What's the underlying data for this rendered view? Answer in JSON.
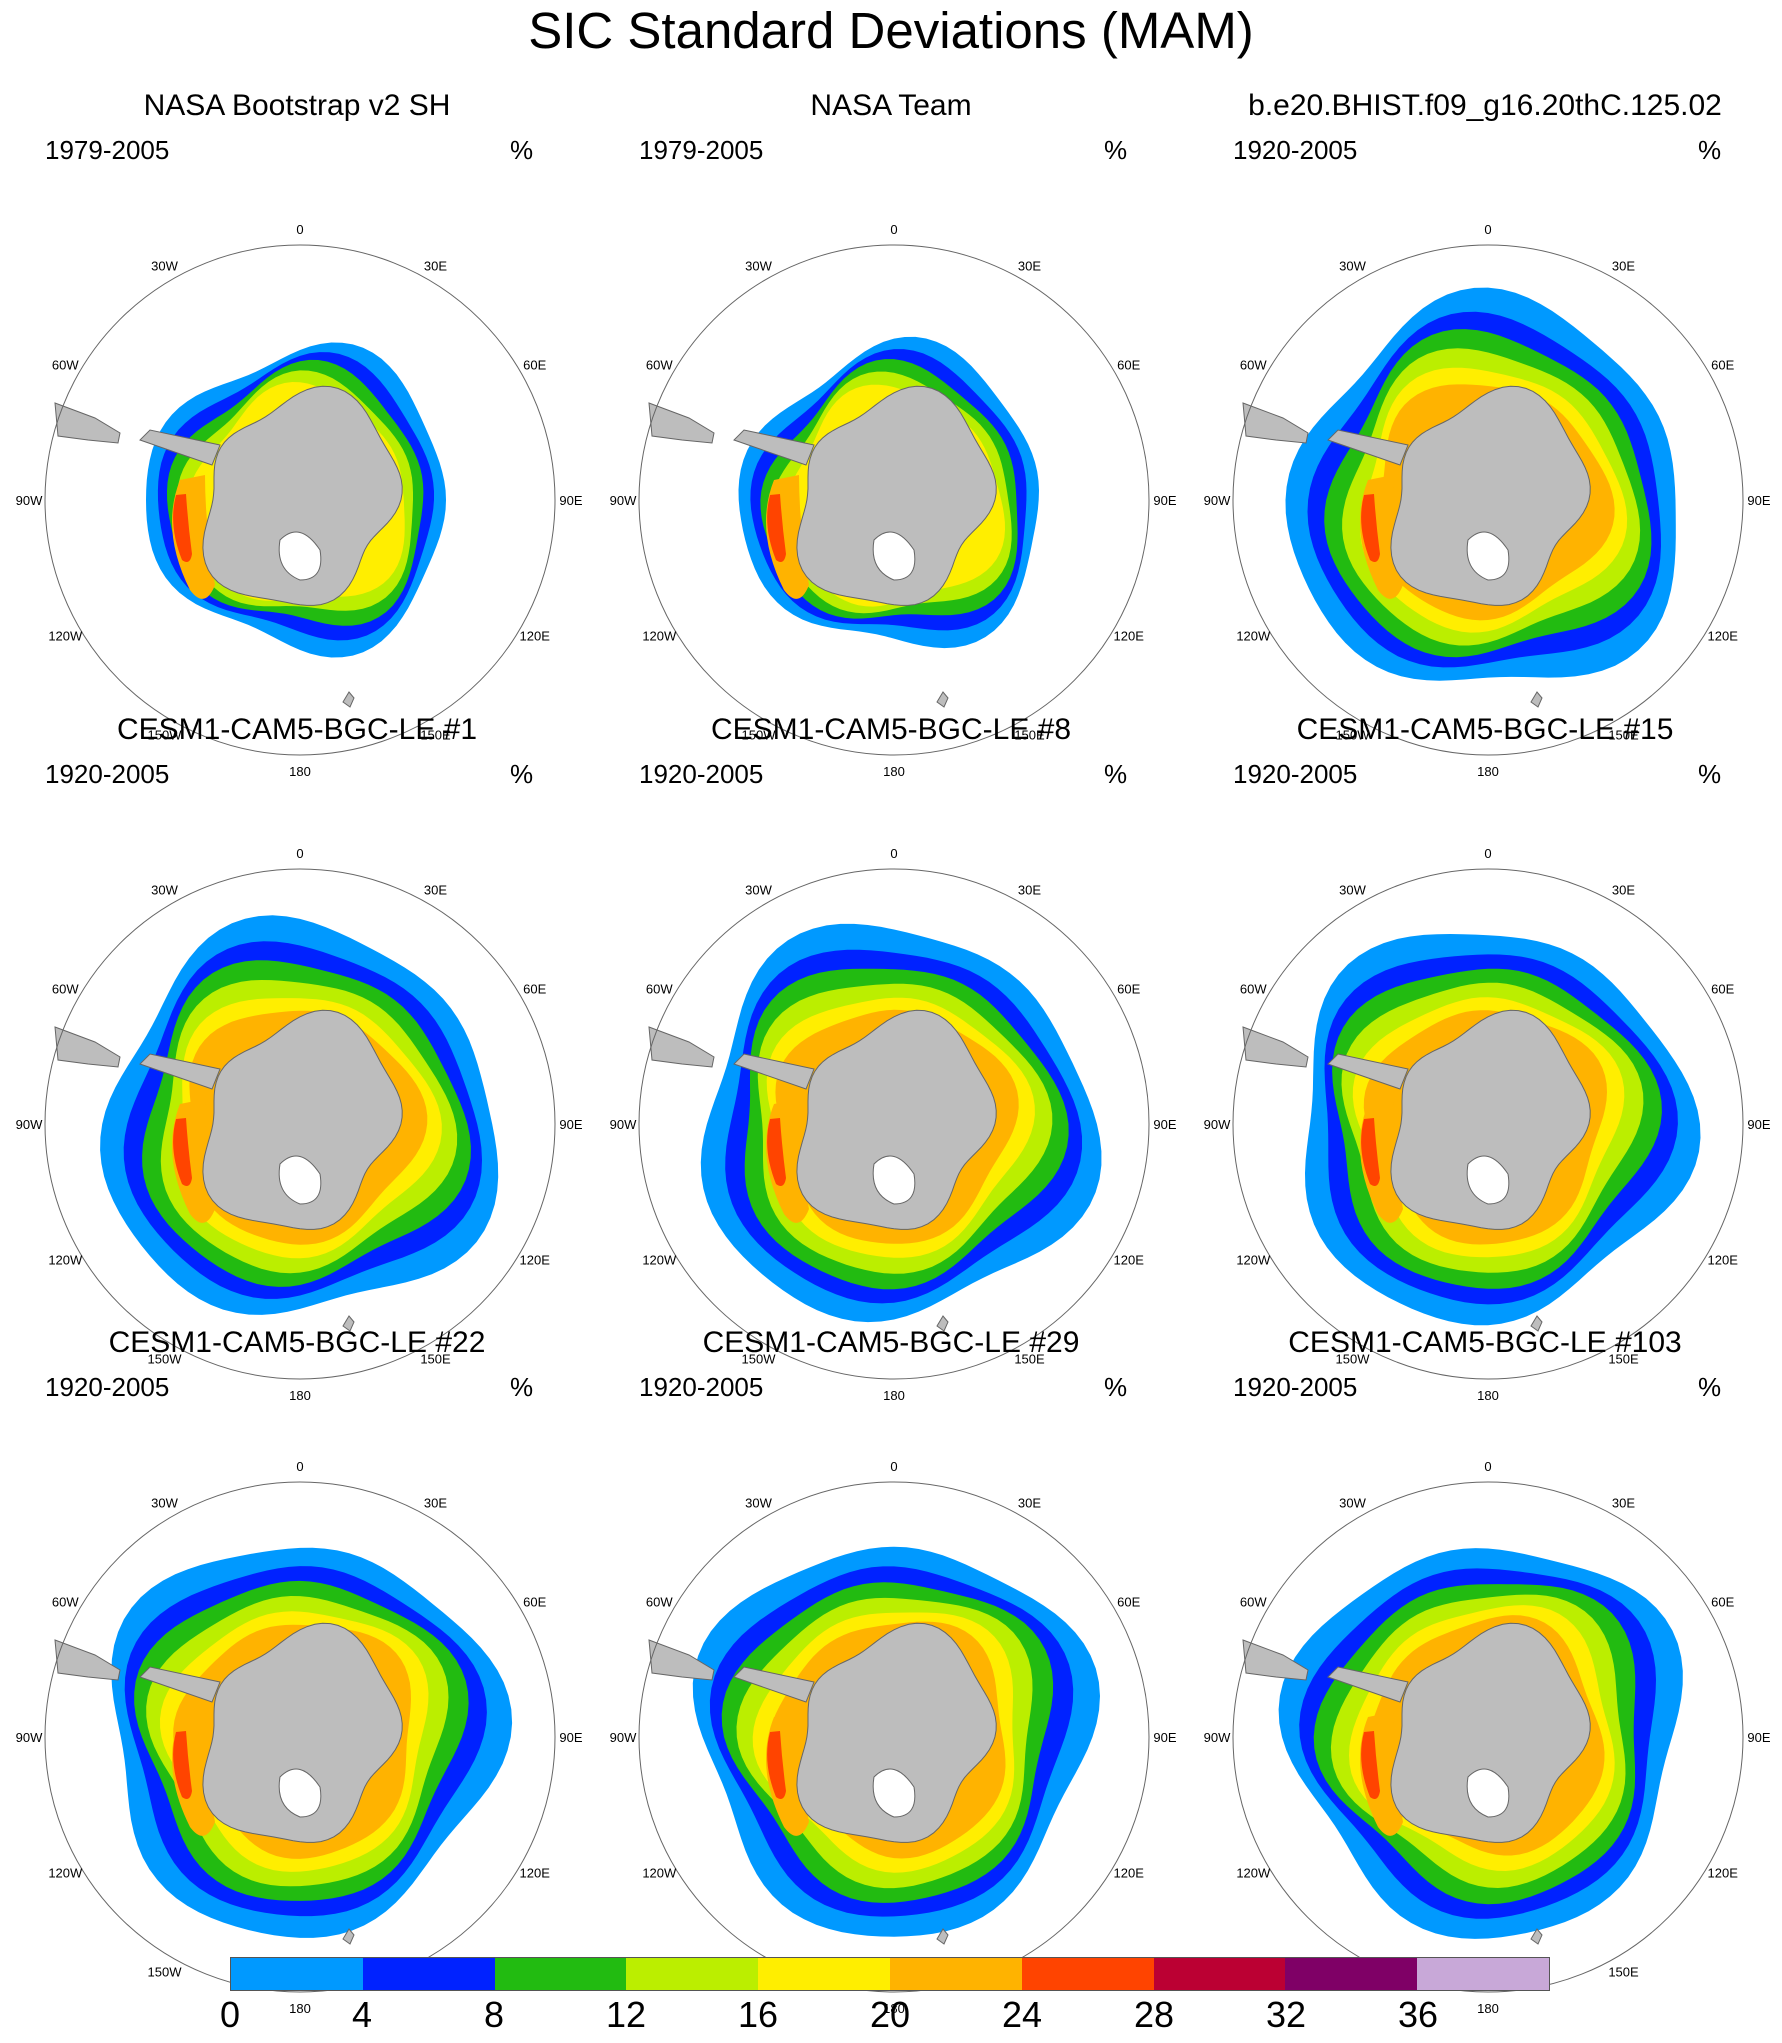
{
  "title": "SIC Standard Deviations (MAM)",
  "unit": "%",
  "longitude_labels": [
    "0",
    "30E",
    "60E",
    "90E",
    "120E",
    "150E",
    "180",
    "150W",
    "120W",
    "90W",
    "60W",
    "30W"
  ],
  "colorbar": {
    "colors": [
      "#0099ff",
      "#0022ff",
      "#22bb11",
      "#bbee00",
      "#ffee00",
      "#ffb300",
      "#ff4400",
      "#bb0033",
      "#7f0066",
      "#c8a8d8"
    ],
    "labels": [
      "0",
      "4",
      "8",
      "12",
      "16",
      "20",
      "24",
      "28",
      "32",
      "36"
    ]
  },
  "panels": [
    {
      "title": "NASA Bootstrap v2 SH",
      "years": "1979-2005"
    },
    {
      "title": "NASA Team",
      "years": "1979-2005"
    },
    {
      "title": "b.e20.BHIST.f09_g16.20thC.125.02",
      "years": "1920-2005"
    },
    {
      "title": "CESM1-CAM5-BGC-LE #1",
      "years": "1920-2005"
    },
    {
      "title": "CESM1-CAM5-BGC-LE #8",
      "years": "1920-2005"
    },
    {
      "title": "CESM1-CAM5-BGC-LE #15",
      "years": "1920-2005"
    },
    {
      "title": "CESM1-CAM5-BGC-LE #22",
      "years": "1920-2005"
    },
    {
      "title": "CESM1-CAM5-BGC-LE #29",
      "years": "1920-2005"
    },
    {
      "title": "CESM1-CAM5-BGC-LE #103",
      "years": "1920-2005"
    }
  ]
}
